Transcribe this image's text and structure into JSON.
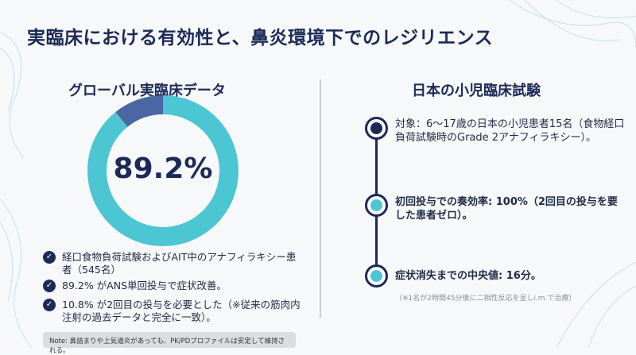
{
  "title": "実臨床における有効性と、鼻炎環境下でのレジリエンス",
  "left": {
    "heading": "グローバル実臨床データ",
    "donut": {
      "value_label": "89.2%",
      "primary_percent": 89.2,
      "secondary_percent": 10.8,
      "primary_color": "#4cc6d2",
      "secondary_color": "#4a66a3"
    },
    "bullets": [
      "経口食物負荷試験およびAIT中のアナフィラキシー患者（545名）",
      "89.2% がANS単回投与で症状改善。",
      "10.8% が2回目の投与を必要とした（※従来の筋肉内注射の過去データと完全に一致）。"
    ],
    "check_icon": "✓",
    "note": "Note: 鼻詰まりや上気道炎があっても、PK/PDプロファイルは安定して維持される。"
  },
  "right": {
    "heading": "日本の小児臨床試験",
    "timeline": [
      {
        "text": "対象：6〜17歳の日本の小児患者15名（食物経口負荷試験時のGrade 2アナフィラキシー）。",
        "color": "#1c2a57"
      },
      {
        "text": "初回投与での奏効率: 100%（2回目の投与を要した患者ゼロ）。",
        "color": "#4cc6d2"
      },
      {
        "text": "症状消失までの中央値: 16分。",
        "color": "#4cc6d2"
      }
    ],
    "footnote": "（※1名が2時間45分後に二相性反応を呈しi.m.で治療）"
  }
}
